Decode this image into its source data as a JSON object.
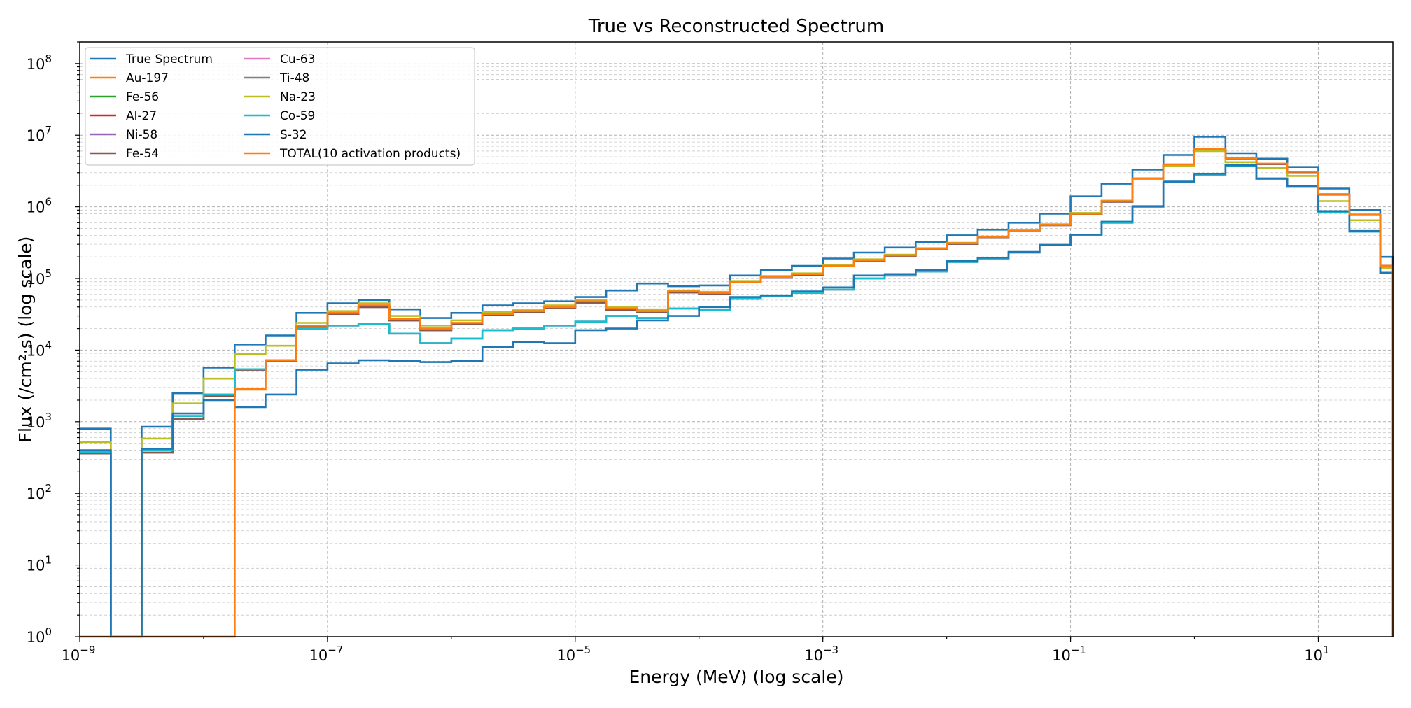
{
  "chart_data": {
    "type": "line",
    "title": "True vs Reconstructed Spectrum",
    "xlabel": "Energy (MeV) (log scale)",
    "ylabel": "Flux (/cm²·s) (log scale)",
    "xscale": "log",
    "yscale": "log",
    "xlim": [
      1e-09,
      40
    ],
    "ylim": [
      1,
      200000000.0
    ],
    "grid": "on (major and minor, dashed)",
    "legend_position": "top-left",
    "legend_columns": 2,
    "x_ticks": [
      {
        "value": 1e-09,
        "base": "10",
        "exp": "−9"
      },
      {
        "value": 1e-07,
        "base": "10",
        "exp": "−7"
      },
      {
        "value": 1e-05,
        "base": "10",
        "exp": "−5"
      },
      {
        "value": 0.001,
        "base": "10",
        "exp": "−3"
      },
      {
        "value": 0.1,
        "base": "10",
        "exp": "−1"
      },
      {
        "value": 10,
        "base": "10",
        "exp": "1"
      }
    ],
    "y_ticks": [
      {
        "value": 1,
        "base": "10",
        "exp": "0"
      },
      {
        "value": 10,
        "base": "10",
        "exp": "1"
      },
      {
        "value": 100,
        "base": "10",
        "exp": "2"
      },
      {
        "value": 1000,
        "base": "10",
        "exp": "3"
      },
      {
        "value": 10000,
        "base": "10",
        "exp": "4"
      },
      {
        "value": 100000,
        "base": "10",
        "exp": "5"
      },
      {
        "value": 1000000,
        "base": "10",
        "exp": "6"
      },
      {
        "value": 10000000,
        "base": "10",
        "exp": "7"
      },
      {
        "value": 100000000,
        "base": "10",
        "exp": "8"
      }
    ],
    "x": [
      1e-09,
      1.78e-09,
      3.16e-09,
      5.62e-09,
      1e-08,
      1.78e-08,
      3.16e-08,
      5.62e-08,
      1e-07,
      1.78e-07,
      3.16e-07,
      5.62e-07,
      1e-06,
      1.78e-06,
      3.16e-06,
      5.62e-06,
      1e-05,
      1.78e-05,
      3.16e-05,
      5.62e-05,
      0.0001,
      0.000178,
      0.000316,
      0.000562,
      0.001,
      0.00178,
      0.00316,
      0.00562,
      0.01,
      0.0178,
      0.0316,
      0.0562,
      0.1,
      0.178,
      0.316,
      0.562,
      1,
      1.78,
      3.16,
      5.62,
      10,
      17.8,
      31.6,
      40
    ],
    "series": [
      {
        "name": "True Spectrum",
        "color": "#1f77b4",
        "values": [
          800,
          1,
          850,
          2500,
          5700,
          12000,
          16000,
          33000,
          45000,
          50000,
          37000,
          28000,
          33000,
          42000,
          45000,
          48000,
          55000,
          68000,
          85000,
          78000,
          80000,
          110000,
          130000,
          150000,
          190000,
          230000,
          270000,
          320000,
          400000,
          480000,
          600000,
          800000,
          1400000,
          2100000,
          3300000,
          5300000,
          9500000,
          5600000,
          4700000,
          3600000,
          1800000,
          900000,
          200000,
          1
        ]
      },
      {
        "name": "Au-197",
        "color": "#ff7f0e",
        "values": [
          1,
          1,
          1,
          1,
          1,
          2800,
          7000,
          22000,
          33000,
          42000,
          27000,
          20000,
          24000,
          32000,
          35000,
          40000,
          48000,
          38000,
          35000,
          66000,
          63000,
          90000,
          105000,
          115000,
          150000,
          180000,
          210000,
          260000,
          310000,
          380000,
          460000,
          560000,
          800000,
          1200000,
          2500000,
          3900000,
          6400000,
          4800000,
          4000000,
          3100000,
          1500000,
          780000,
          150000,
          1
        ]
      },
      {
        "name": "Fe-56",
        "color": "#2ca02c",
        "values": [
          360,
          1,
          370,
          1100,
          2300,
          5200,
          7000,
          21000,
          32000,
          40000,
          26000,
          19000,
          23000,
          31000,
          34000,
          39000,
          46000,
          36000,
          34000,
          64000,
          61000,
          88000,
          102000,
          112000,
          148000,
          178000,
          208000,
          255000,
          305000,
          375000,
          455000,
          555000,
          790000,
          1180000,
          2450000,
          3850000,
          6300000,
          4750000,
          3950000,
          3050000,
          1480000,
          770000,
          150000,
          1
        ]
      },
      {
        "name": "Al-27",
        "color": "#d62728",
        "values": [
          360,
          1,
          370,
          1100,
          2300,
          5200,
          7000,
          21000,
          32000,
          40000,
          26000,
          19000,
          23000,
          31000,
          34000,
          39000,
          46000,
          36000,
          34000,
          64000,
          61000,
          88000,
          102000,
          112000,
          148000,
          178000,
          208000,
          255000,
          305000,
          375000,
          455000,
          555000,
          790000,
          1180000,
          2450000,
          3850000,
          6300000,
          4750000,
          3950000,
          3050000,
          1480000,
          770000,
          150000,
          1
        ]
      },
      {
        "name": "Ni-58",
        "color": "#9467bd",
        "values": [
          360,
          1,
          370,
          1100,
          2300,
          5200,
          7000,
          21000,
          32000,
          40000,
          26000,
          19000,
          23000,
          31000,
          34000,
          39000,
          46000,
          36000,
          34000,
          64000,
          61000,
          88000,
          102000,
          112000,
          148000,
          178000,
          208000,
          255000,
          305000,
          375000,
          455000,
          555000,
          790000,
          1180000,
          2450000,
          3850000,
          6300000,
          4750000,
          3950000,
          3050000,
          1480000,
          770000,
          150000,
          1
        ]
      },
      {
        "name": "Fe-54",
        "color": "#8c564b",
        "values": [
          360,
          1,
          370,
          1100,
          2300,
          5200,
          7000,
          21000,
          32000,
          40000,
          26000,
          19000,
          23000,
          31000,
          34000,
          39000,
          46000,
          36000,
          34000,
          64000,
          61000,
          88000,
          102000,
          112000,
          148000,
          178000,
          208000,
          255000,
          305000,
          375000,
          455000,
          555000,
          790000,
          1180000,
          2450000,
          3850000,
          6300000,
          4750000,
          3950000,
          3050000,
          1480000,
          770000,
          150000,
          1
        ]
      },
      {
        "name": "Cu-63",
        "color": "#e377c2",
        "values": [
          380,
          1,
          400,
          1200,
          2400,
          5400,
          7200,
          20000,
          22000,
          23000,
          17000,
          12500,
          14500,
          19000,
          20000,
          22000,
          25000,
          30000,
          28000,
          38000,
          36000,
          52000,
          57000,
          63000,
          70000,
          100000,
          110000,
          125000,
          170000,
          190000,
          230000,
          290000,
          400000,
          600000,
          1000000,
          2200000,
          2800000,
          3700000,
          2400000,
          1900000,
          850000,
          450000,
          120000,
          1
        ]
      },
      {
        "name": "Ti-48",
        "color": "#7f7f7f",
        "values": [
          380,
          1,
          400,
          1200,
          2400,
          5400,
          7200,
          20000,
          22000,
          23000,
          17000,
          12500,
          14500,
          19000,
          20000,
          22000,
          25000,
          30000,
          28000,
          38000,
          36000,
          52000,
          57000,
          63000,
          70000,
          100000,
          110000,
          125000,
          170000,
          190000,
          230000,
          290000,
          400000,
          600000,
          1000000,
          2200000,
          2800000,
          3700000,
          2400000,
          1900000,
          850000,
          450000,
          120000,
          1
        ]
      },
      {
        "name": "Na-23",
        "color": "#bcbd22",
        "values": [
          520,
          1,
          580,
          1800,
          4000,
          8800,
          11500,
          24000,
          35000,
          45000,
          30000,
          22000,
          26000,
          34000,
          36000,
          42000,
          50000,
          40000,
          37000,
          68000,
          65000,
          92000,
          108000,
          118000,
          155000,
          185000,
          215000,
          265000,
          315000,
          385000,
          470000,
          570000,
          820000,
          1220000,
          2400000,
          3700000,
          6000000,
          4200000,
          3500000,
          2700000,
          1200000,
          650000,
          140000,
          1
        ]
      },
      {
        "name": "Co-59",
        "color": "#17becf",
        "values": [
          380,
          1,
          400,
          1200,
          2400,
          5400,
          7200,
          20000,
          22000,
          23000,
          17000,
          12500,
          14500,
          19000,
          20000,
          22000,
          25000,
          30000,
          28000,
          38000,
          36000,
          52000,
          57000,
          63000,
          70000,
          100000,
          110000,
          125000,
          170000,
          190000,
          230000,
          290000,
          400000,
          600000,
          1000000,
          2200000,
          2800000,
          3700000,
          2400000,
          1900000,
          850000,
          450000,
          120000,
          1
        ]
      },
      {
        "name": "S-32",
        "color": "#1f77b4",
        "values": [
          400,
          1,
          420,
          1300,
          2000,
          1600,
          2400,
          5300,
          6500,
          7200,
          7000,
          6800,
          7000,
          11000,
          13000,
          12500,
          19000,
          20000,
          26000,
          30000,
          40000,
          55000,
          58000,
          66000,
          75000,
          110000,
          115000,
          130000,
          175000,
          195000,
          235000,
          295000,
          410000,
          620000,
          1020000,
          2250000,
          2900000,
          3800000,
          2500000,
          1950000,
          870000,
          460000,
          120000,
          1
        ]
      },
      {
        "name": "TOTAL(10 activation products)",
        "color": "#ff7f0e",
        "values": [
          1,
          1,
          1,
          1,
          1,
          2900,
          7200,
          22000,
          33000,
          42000,
          27000,
          20000,
          24000,
          32000,
          35000,
          40000,
          48000,
          38000,
          35000,
          66000,
          63000,
          90000,
          105000,
          115000,
          150000,
          180000,
          210000,
          260000,
          310000,
          380000,
          460000,
          560000,
          800000,
          1200000,
          2500000,
          3900000,
          6400000,
          4800000,
          4000000,
          3100000,
          1500000,
          780000,
          150000,
          1
        ]
      }
    ]
  }
}
